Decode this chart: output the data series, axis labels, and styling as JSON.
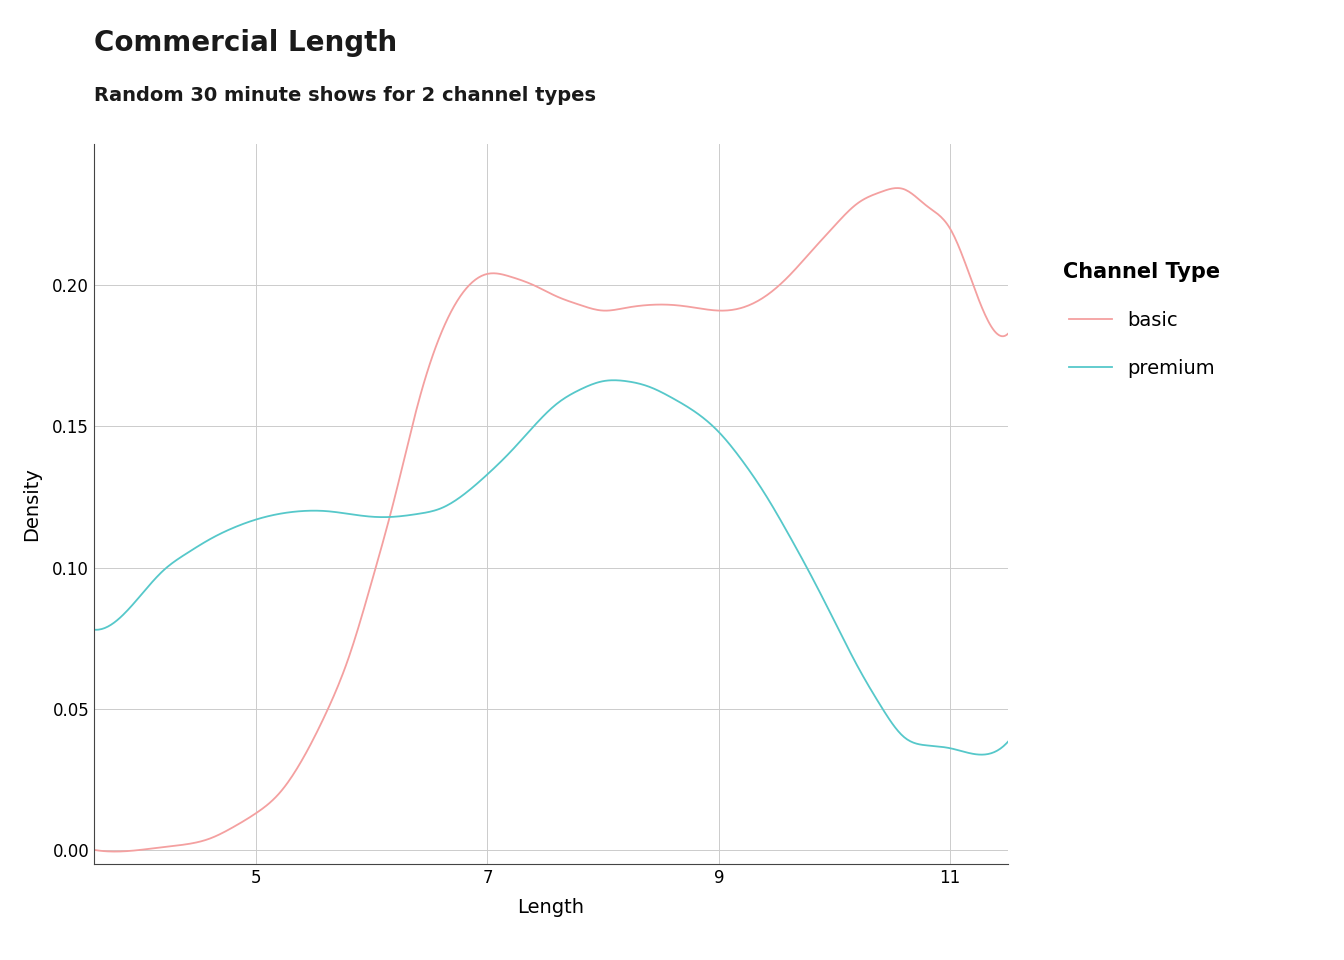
{
  "title": "Commercial Length",
  "subtitle": "Random 30 minute shows for 2 channel types",
  "xlabel": "Length",
  "ylabel": "Density",
  "title_fontsize": 20,
  "subtitle_fontsize": 14,
  "axis_label_fontsize": 14,
  "tick_fontsize": 12,
  "legend_title": "Channel Type",
  "legend_labels": [
    "basic",
    "premium"
  ],
  "basic_color": "#F4A0A0",
  "premium_color": "#56C8CA",
  "line_width": 1.3,
  "xlim": [
    3.6,
    11.5
  ],
  "ylim": [
    -0.005,
    0.25
  ],
  "xticks": [
    5,
    7,
    9,
    11
  ],
  "yticks": [
    0.0,
    0.05,
    0.1,
    0.15,
    0.2
  ],
  "background_color": "#ffffff",
  "panel_background": "#ffffff",
  "grid_color": "#cccccc",
  "basic_x": [
    3.6,
    4.0,
    4.2,
    4.4,
    4.6,
    4.8,
    5.0,
    5.2,
    5.4,
    5.6,
    5.8,
    6.0,
    6.2,
    6.4,
    6.6,
    6.8,
    7.0,
    7.2,
    7.4,
    7.6,
    7.8,
    8.0,
    8.2,
    8.4,
    8.6,
    8.8,
    9.0,
    9.2,
    9.4,
    9.6,
    9.8,
    10.0,
    10.2,
    10.4,
    10.6,
    10.8,
    11.0,
    11.2,
    11.4
  ],
  "basic_y": [
    0.0,
    0.0,
    0.001,
    0.002,
    0.004,
    0.008,
    0.013,
    0.02,
    0.032,
    0.048,
    0.068,
    0.095,
    0.125,
    0.158,
    0.183,
    0.198,
    0.204,
    0.203,
    0.2,
    0.196,
    0.193,
    0.191,
    0.192,
    0.193,
    0.193,
    0.192,
    0.191,
    0.192,
    0.196,
    0.203,
    0.212,
    0.221,
    0.229,
    0.233,
    0.234,
    0.228,
    0.22,
    0.2,
    0.183
  ],
  "premium_x": [
    3.6,
    4.0,
    4.2,
    4.4,
    4.6,
    4.8,
    5.0,
    5.2,
    5.4,
    5.6,
    5.8,
    6.0,
    6.2,
    6.4,
    6.6,
    6.8,
    7.0,
    7.2,
    7.4,
    7.6,
    7.8,
    8.0,
    8.2,
    8.4,
    8.6,
    8.8,
    9.0,
    9.2,
    9.4,
    9.6,
    9.8,
    10.0,
    10.2,
    10.4,
    10.6,
    10.8,
    11.0,
    11.2,
    11.4
  ],
  "premium_y": [
    0.078,
    0.09,
    0.099,
    0.105,
    0.11,
    0.114,
    0.117,
    0.119,
    0.12,
    0.12,
    0.119,
    0.118,
    0.118,
    0.119,
    0.121,
    0.126,
    0.133,
    0.141,
    0.15,
    0.158,
    0.163,
    0.166,
    0.166,
    0.164,
    0.16,
    0.155,
    0.148,
    0.138,
    0.126,
    0.112,
    0.097,
    0.081,
    0.065,
    0.051,
    0.04,
    0.037,
    0.036,
    0.034,
    0.035
  ]
}
